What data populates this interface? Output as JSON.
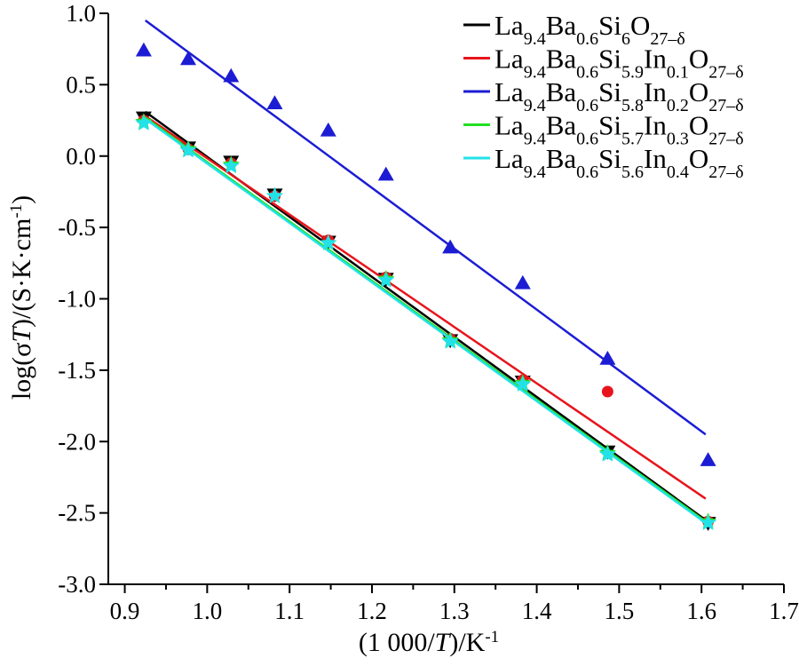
{
  "chart_data": {
    "type": "scatter",
    "xlabel": {
      "pre": "(1 000/",
      "var": "T",
      "post": ")/K",
      "sup": "-1"
    },
    "ylabel": {
      "pre": "log(σ",
      "var": "T",
      "post": ")/(S·K·cm",
      "sup": "-1",
      "close": ")"
    },
    "xlim": [
      0.88,
      1.7
    ],
    "ylim": [
      -3.0,
      1.0
    ],
    "xticks": [
      "0.9",
      "1.0",
      "1.1",
      "1.2",
      "1.3",
      "1.4",
      "1.5",
      "1.6",
      "1.7"
    ],
    "yticks": [
      "1.0",
      "0.5",
      "0.0",
      "-0.5",
      "-1.0",
      "-1.5",
      "-2.0",
      "-2.5",
      "-3.0"
    ],
    "legend_position": "top-right",
    "grid": false,
    "series": [
      {
        "legend_parts": [
          {
            "t": "La",
            "s": "9.4"
          },
          {
            "t": "Ba",
            "s": "0.6"
          },
          {
            "t": "Si",
            "s": "6"
          },
          {
            "t": "O",
            "s": "27–δ"
          }
        ],
        "color": "#000000",
        "marker": "triangle-down",
        "points": [
          [
            0.923,
            0.27
          ],
          [
            0.977,
            0.06
          ],
          [
            1.029,
            -0.04
          ],
          [
            1.082,
            -0.27
          ],
          [
            1.147,
            -0.6
          ],
          [
            1.217,
            -0.86
          ],
          [
            1.295,
            -1.29
          ],
          [
            1.383,
            -1.58
          ],
          [
            1.486,
            -2.07
          ],
          [
            1.608,
            -2.57
          ]
        ],
        "fit": [
          [
            0.925,
            0.31
          ],
          [
            1.605,
            -2.55
          ]
        ]
      },
      {
        "legend_parts": [
          {
            "t": "La",
            "s": "9.4"
          },
          {
            "t": "Ba",
            "s": "0.6"
          },
          {
            "t": "Si",
            "s": "5.9"
          },
          {
            "t": "In",
            "s": "0.1"
          },
          {
            "t": "O",
            "s": "27–δ"
          }
        ],
        "color": "#e8141c",
        "marker": "circle",
        "points": [
          [
            0.923,
            0.25
          ],
          [
            0.977,
            0.05
          ],
          [
            1.029,
            -0.05
          ],
          [
            1.082,
            -0.28
          ],
          [
            1.147,
            -0.59
          ],
          [
            1.217,
            -0.85
          ],
          [
            1.295,
            -1.28
          ],
          [
            1.383,
            -1.57
          ],
          [
            1.486,
            -1.65
          ],
          [
            1.608,
            -2.56
          ]
        ],
        "fit": [
          [
            0.925,
            0.28
          ],
          [
            1.605,
            -2.4
          ]
        ]
      },
      {
        "legend_parts": [
          {
            "t": "La",
            "s": "9.4"
          },
          {
            "t": "Ba",
            "s": "0.6"
          },
          {
            "t": "Si",
            "s": "5.8"
          },
          {
            "t": "In",
            "s": "0.2"
          },
          {
            "t": "O",
            "s": "27–δ"
          }
        ],
        "color": "#1c1cd4",
        "marker": "triangle-up",
        "points": [
          [
            0.923,
            0.74
          ],
          [
            0.977,
            0.68
          ],
          [
            1.029,
            0.56
          ],
          [
            1.082,
            0.37
          ],
          [
            1.147,
            0.18
          ],
          [
            1.217,
            -0.13
          ],
          [
            1.295,
            -0.64
          ],
          [
            1.383,
            -0.89
          ],
          [
            1.486,
            -1.42
          ],
          [
            1.608,
            -2.13
          ]
        ],
        "fit": [
          [
            0.925,
            0.95
          ],
          [
            1.605,
            -1.95
          ]
        ]
      },
      {
        "legend_parts": [
          {
            "t": "La",
            "s": "9.4"
          },
          {
            "t": "Ba",
            "s": "0.6"
          },
          {
            "t": "Si",
            "s": "5.7"
          },
          {
            "t": "In",
            "s": "0.3"
          },
          {
            "t": "O",
            "s": "27–δ"
          }
        ],
        "color": "#22e022",
        "marker": "star",
        "points": [
          [
            0.923,
            0.24
          ],
          [
            0.977,
            0.05
          ],
          [
            1.029,
            -0.06
          ],
          [
            1.082,
            -0.28
          ],
          [
            1.147,
            -0.61
          ],
          [
            1.217,
            -0.86
          ],
          [
            1.295,
            -1.29
          ],
          [
            1.383,
            -1.59
          ],
          [
            1.486,
            -2.08
          ],
          [
            1.608,
            -2.56
          ]
        ],
        "fit": [
          [
            0.925,
            0.27
          ],
          [
            1.605,
            -2.56
          ]
        ]
      },
      {
        "legend_parts": [
          {
            "t": "La",
            "s": "9.4"
          },
          {
            "t": "Ba",
            "s": "0.6"
          },
          {
            "t": "Si",
            "s": "5.6"
          },
          {
            "t": "In",
            "s": "0.4"
          },
          {
            "t": "O",
            "s": "27–δ"
          }
        ],
        "color": "#22e2e8",
        "marker": "star",
        "points": [
          [
            0.923,
            0.23
          ],
          [
            0.977,
            0.04
          ],
          [
            1.029,
            -0.07
          ],
          [
            1.082,
            -0.28
          ],
          [
            1.147,
            -0.61
          ],
          [
            1.217,
            -0.87
          ],
          [
            1.295,
            -1.3
          ],
          [
            1.383,
            -1.6
          ],
          [
            1.486,
            -2.09
          ],
          [
            1.608,
            -2.57
          ]
        ],
        "fit": [
          [
            0.925,
            0.26
          ],
          [
            1.605,
            -2.57
          ]
        ]
      }
    ]
  }
}
